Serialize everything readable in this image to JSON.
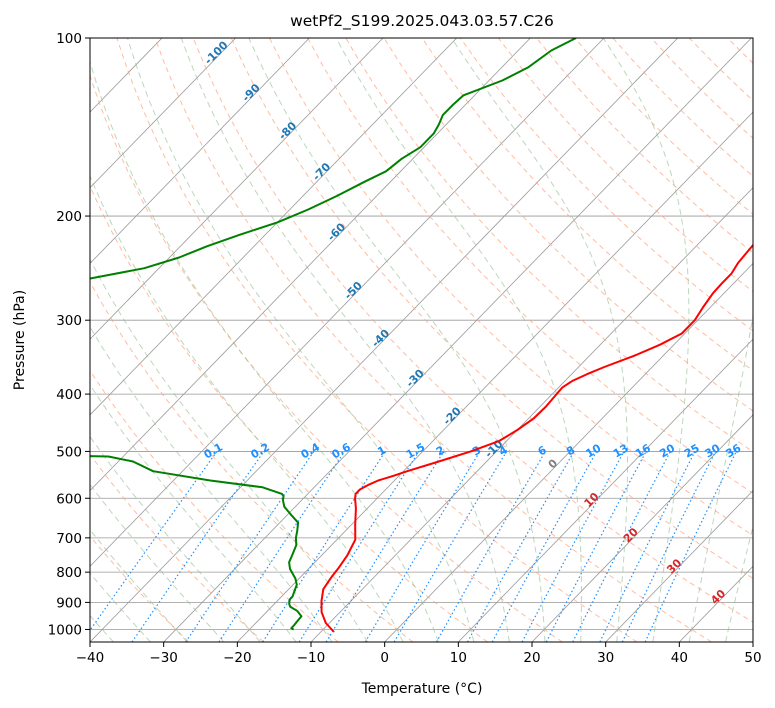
{
  "chart_data": {
    "type": "line",
    "title": "wetPf2_S199.2025.043.03.57.C26",
    "xlabel": "Temperature (°C)",
    "ylabel": "Pressure (hPa)",
    "xlim": [
      -40,
      50
    ],
    "ylim": [
      1050,
      100
    ],
    "y_scale": "log",
    "x_ticks": [
      -40,
      -30,
      -20,
      -10,
      0,
      10,
      20,
      30,
      40,
      50
    ],
    "y_ticks": [
      1000,
      900,
      800,
      700,
      600,
      500,
      400,
      300,
      200,
      100
    ],
    "grid": true,
    "skew": true,
    "series": [
      {
        "role": "temperature",
        "color": "#ff0000",
        "points": [
          [
            -8.2,
            1010
          ],
          [
            -10.5,
            975
          ],
          [
            -12.5,
            935
          ],
          [
            -14,
            895
          ],
          [
            -15.3,
            855
          ],
          [
            -15.8,
            815
          ],
          [
            -16,
            790
          ],
          [
            -16.5,
            750
          ],
          [
            -17.5,
            705
          ],
          [
            -19.5,
            665
          ],
          [
            -21.5,
            625
          ],
          [
            -23,
            600
          ],
          [
            -23.5,
            590
          ],
          [
            -23.5,
            580
          ],
          [
            -23,
            570
          ],
          [
            -22.2,
            560
          ],
          [
            -20.8,
            550
          ],
          [
            -19.5,
            540
          ],
          [
            -16.5,
            520
          ],
          [
            -13.5,
            500
          ],
          [
            -11,
            480
          ],
          [
            -10,
            460
          ],
          [
            -9.3,
            440
          ],
          [
            -9.2,
            420
          ],
          [
            -9.4,
            400
          ],
          [
            -9.5,
            390
          ],
          [
            -9,
            380
          ],
          [
            -7.9,
            370
          ],
          [
            -6.5,
            360
          ],
          [
            -4,
            345
          ],
          [
            -1.9,
            330
          ],
          [
            -0.4,
            316
          ],
          [
            -0.4,
            300
          ],
          [
            -1,
            285
          ],
          [
            -1.5,
            270
          ],
          [
            -1.6,
            260
          ],
          [
            -1.6,
            250
          ],
          [
            -2.1,
            240
          ],
          [
            -2.3,
            230
          ],
          [
            -2.5,
            220
          ],
          [
            -3,
            200
          ],
          [
            -3.2,
            180
          ],
          [
            -3.5,
            170
          ],
          [
            -4.8,
            160
          ],
          [
            -6.8,
            150
          ],
          [
            -9.6,
            140
          ],
          [
            -11.5,
            130
          ],
          [
            -16.5,
            120
          ],
          [
            -19,
            115
          ],
          [
            -21.5,
            110
          ],
          [
            -24.8,
            105
          ],
          [
            -27.5,
            100
          ]
        ]
      },
      {
        "role": "dewpoint",
        "color": "#008000",
        "points": [
          [
            -14,
            1000
          ],
          [
            -14.5,
            995
          ],
          [
            -14.5,
            985
          ],
          [
            -14.6,
            970
          ],
          [
            -14.7,
            950
          ],
          [
            -16,
            930
          ],
          [
            -17.5,
            915
          ],
          [
            -18,
            905
          ],
          [
            -18.5,
            890
          ],
          [
            -18.5,
            880
          ],
          [
            -19,
            860
          ],
          [
            -19.5,
            840
          ],
          [
            -20.5,
            820
          ],
          [
            -21.5,
            805
          ],
          [
            -22.5,
            790
          ],
          [
            -23.5,
            770
          ],
          [
            -24,
            750
          ],
          [
            -24.8,
            720
          ],
          [
            -25.8,
            700
          ],
          [
            -26.6,
            680
          ],
          [
            -27.5,
            660
          ],
          [
            -29.5,
            640
          ],
          [
            -31.5,
            620
          ],
          [
            -32.5,
            605
          ],
          [
            -33,
            595
          ],
          [
            -33.5,
            590
          ],
          [
            -37,
            575
          ],
          [
            -45,
            560
          ],
          [
            -54,
            540
          ],
          [
            -58,
            520
          ],
          [
            -62,
            510
          ],
          [
            -100,
            500
          ],
          [
            -130,
            400
          ],
          [
            -139,
            285
          ],
          [
            -121,
            275
          ],
          [
            -100,
            265
          ],
          [
            -88,
            255
          ],
          [
            -82,
            245
          ],
          [
            -78.7,
            235
          ],
          [
            -76.4,
            225
          ],
          [
            -73.4,
            215
          ],
          [
            -70,
            205
          ],
          [
            -67.5,
            195
          ],
          [
            -65.4,
            185
          ],
          [
            -63.5,
            175
          ],
          [
            -62,
            168
          ],
          [
            -61.5,
            160
          ],
          [
            -60.5,
            153
          ],
          [
            -60.5,
            145
          ],
          [
            -61,
            140
          ],
          [
            -61.7,
            135
          ],
          [
            -61.7,
            130
          ],
          [
            -61.5,
            125
          ],
          [
            -58.2,
            118
          ],
          [
            -56.4,
            112
          ],
          [
            -55.5,
            105
          ],
          [
            -53.8,
            100
          ]
        ]
      }
    ],
    "dry_adiabat_labels": [
      "-100",
      "-90",
      "-80",
      "-70",
      "-60",
      "-50",
      "-40",
      "-30",
      "-20",
      "-10"
    ],
    "moist_adiabat_labels": [
      "0",
      "10",
      "20",
      "30",
      "40"
    ],
    "mixing_ratio_labels": [
      "0.1",
      "0.2",
      "0.4",
      "0.6",
      "1",
      "1.5",
      "2",
      "3",
      "4",
      "6",
      "8",
      "10",
      "13",
      "16",
      "20",
      "25",
      "30",
      "36"
    ],
    "colors": {
      "temperature": "#ff0000",
      "dewpoint": "#008000",
      "isotherm": "#999999",
      "dry_adiabat": "#ffa07a",
      "moist_adiabat": "#8fbc8f",
      "mixing_ratio": "#1e90ff",
      "dry_label": "#1f77b4",
      "moist_label": "#d62728"
    }
  }
}
